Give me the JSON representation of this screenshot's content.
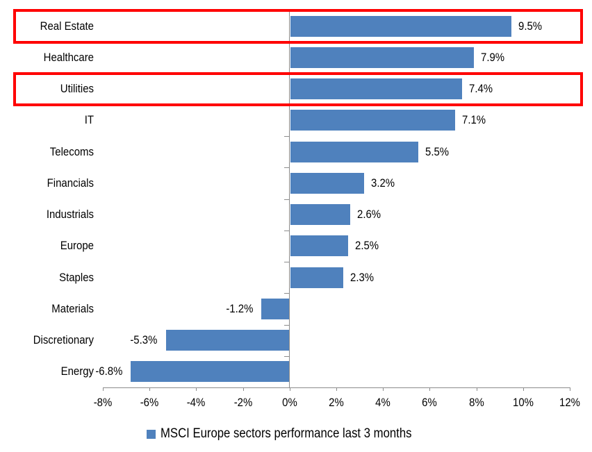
{
  "chart_data": {
    "type": "bar",
    "orientation": "horizontal",
    "title": "",
    "categories": [
      "Real Estate",
      "Healthcare",
      "Utilities",
      "IT",
      "Telecoms",
      "Financials",
      "Industrials",
      "Europe",
      "Staples",
      "Materials",
      "Discretionary",
      "Energy"
    ],
    "values": [
      9.5,
      7.9,
      7.4,
      7.1,
      5.5,
      3.2,
      2.6,
      2.5,
      2.3,
      -1.2,
      -5.3,
      -6.8
    ],
    "data_labels": [
      "9.5%",
      "7.9%",
      "7.4%",
      "7.1%",
      "5.5%",
      "3.2%",
      "2.6%",
      "2.5%",
      "2.3%",
      "-1.2%",
      "-5.3%",
      "-6.8%"
    ],
    "xlim": [
      -8,
      12
    ],
    "x_ticks": [
      {
        "value": -8,
        "label": "-8%"
      },
      {
        "value": -6,
        "label": "-6%"
      },
      {
        "value": -4,
        "label": "-4%"
      },
      {
        "value": -2,
        "label": "-2%"
      },
      {
        "value": 0,
        "label": "0%"
      },
      {
        "value": 2,
        "label": "2%"
      },
      {
        "value": 4,
        "label": "4%"
      },
      {
        "value": 6,
        "label": "6%"
      },
      {
        "value": 8,
        "label": "8%"
      },
      {
        "value": 10,
        "label": "10%"
      },
      {
        "value": 12,
        "label": "12%"
      }
    ],
    "grid": false,
    "legend_position": "bottom",
    "legend_label": "MSCI Europe sectors performance last 3 months",
    "highlighted_categories": [
      "Real Estate",
      "Utilities"
    ],
    "colors": {
      "bar": "#4F81BD",
      "axis": "#8C8C8C",
      "highlight_box": "#FF0000",
      "text": "#000000",
      "background": "#FFFFFF"
    }
  }
}
